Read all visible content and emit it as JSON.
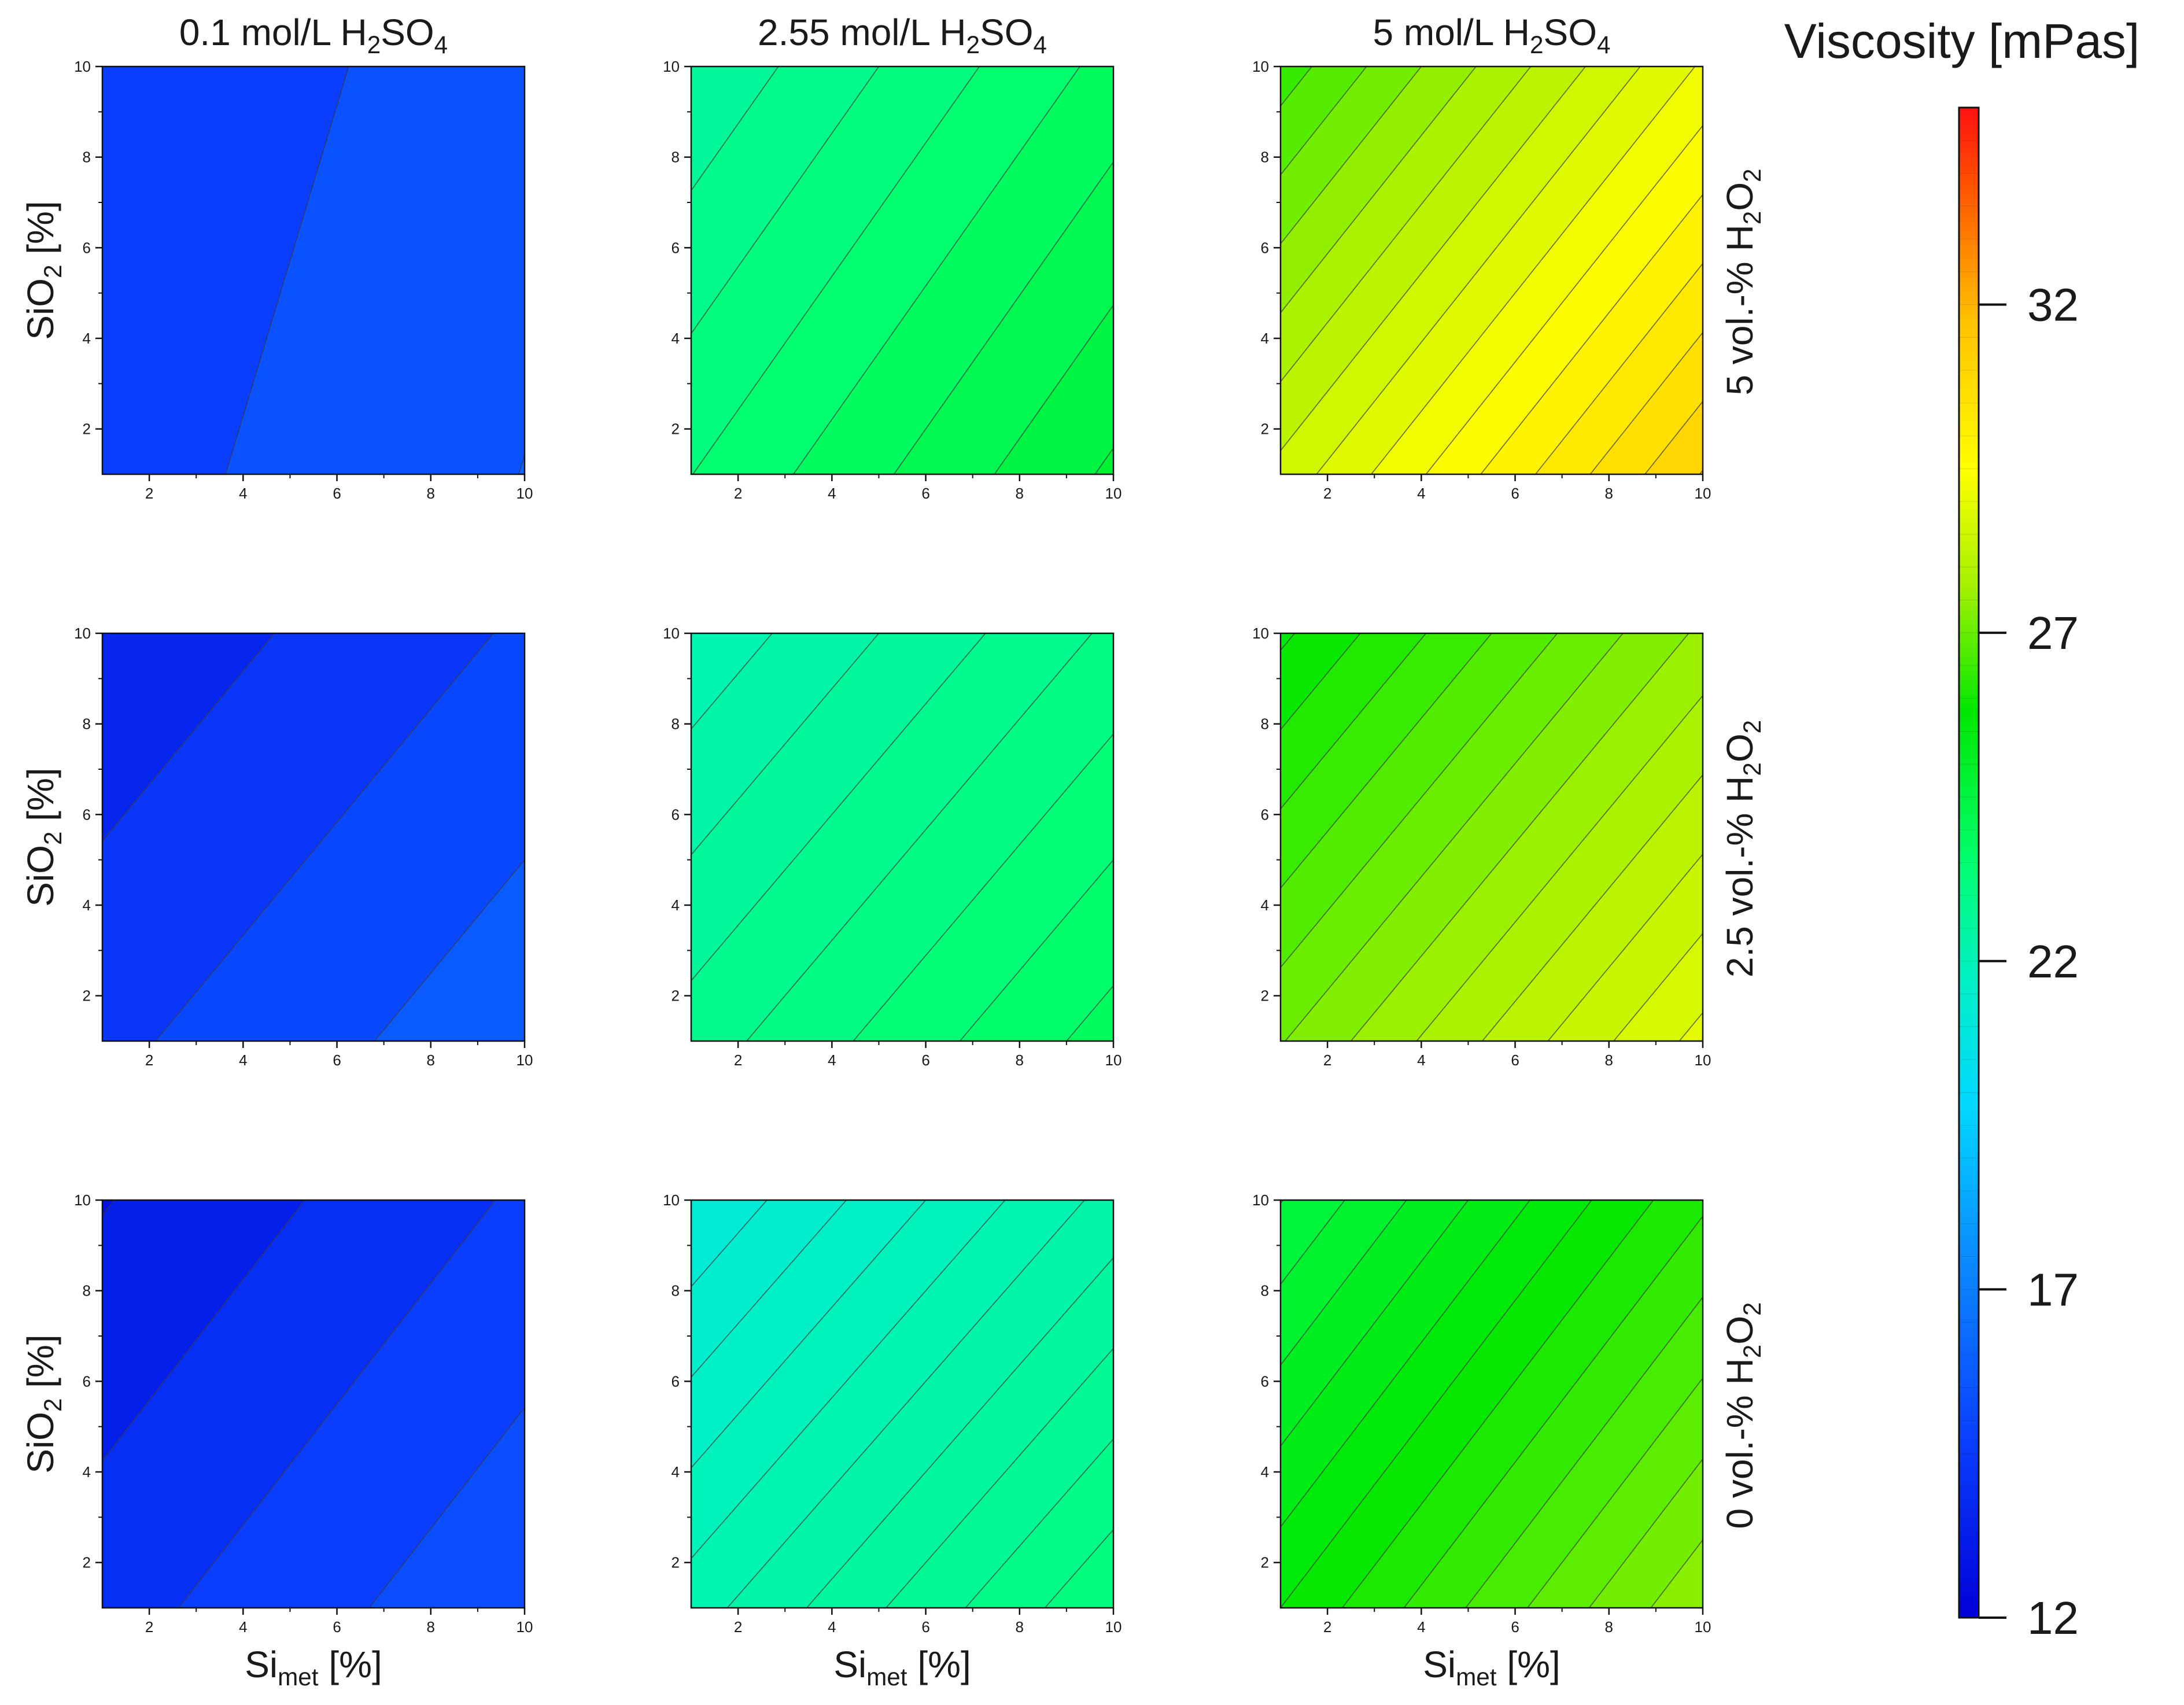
{
  "figure": {
    "colorbar": {
      "title": "Viscosity [mPas]",
      "min": 12,
      "max": 35,
      "tick_labels": [
        "32",
        "27",
        "22",
        "17",
        "12"
      ],
      "tick_values": [
        32,
        27,
        22,
        17,
        12
      ]
    },
    "columns": [
      {
        "label_parts": [
          "0.1 mol/L H",
          "2",
          "SO",
          "4"
        ]
      },
      {
        "label_parts": [
          "2.55 mol/L H",
          "2",
          "SO",
          "4"
        ]
      },
      {
        "label_parts": [
          "5 mol/L H",
          "2",
          "SO",
          "4"
        ]
      }
    ],
    "rows": [
      {
        "label_parts": [
          "5 vol.-% H",
          "2",
          "O",
          "2"
        ]
      },
      {
        "label_parts": [
          "2.5 vol.-% H",
          "2",
          "O",
          "2"
        ]
      },
      {
        "label_parts": [
          "0 vol.-% H",
          "2",
          "O",
          "2"
        ]
      }
    ],
    "ylabel_parts": [
      "SiO",
      "2",
      " [%]"
    ],
    "xlabel_parts": [
      "Si",
      "met",
      " [%]"
    ]
  },
  "chart_data": [
    {
      "type": "heatmap",
      "subtype": "contour",
      "row": 0,
      "col": 0,
      "x_tick_labels": [
        "2",
        "4",
        "6",
        "8",
        "10"
      ],
      "y_tick_labels": [
        "2",
        "4",
        "6",
        "8",
        "10"
      ],
      "xlim": [
        1,
        10
      ],
      "ylim": [
        1,
        10
      ],
      "model": {
        "z0": 14.6,
        "gx": 0.12,
        "gy": -0.035
      },
      "contour_step": 0.75,
      "x_tick_values": [
        2,
        4,
        6,
        8,
        10
      ],
      "y_tick_values": [
        2,
        4,
        6,
        8,
        10
      ]
    },
    {
      "type": "heatmap",
      "subtype": "contour",
      "row": 0,
      "col": 1,
      "x_tick_labels": [
        "2",
        "4",
        "6",
        "8",
        "10"
      ],
      "y_tick_labels": [
        "2",
        "4",
        "6",
        "8",
        "10"
      ],
      "xlim": [
        1,
        10
      ],
      "ylim": [
        1,
        10
      ],
      "model": {
        "z0": 23.35,
        "gx": 0.14,
        "gy": -0.095
      },
      "contour_step": 0.3,
      "x_tick_values": [
        2,
        4,
        6,
        8,
        10
      ],
      "y_tick_values": [
        2,
        4,
        6,
        8,
        10
      ]
    },
    {
      "type": "heatmap",
      "subtype": "contour",
      "row": 0,
      "col": 2,
      "x_tick_labels": [
        "2",
        "4",
        "6",
        "8",
        "10"
      ],
      "y_tick_labels": [
        "2",
        "4",
        "6",
        "8",
        "10"
      ],
      "xlim": [
        1,
        10
      ],
      "ylim": [
        1,
        10
      ],
      "model": {
        "z0": 28.4,
        "gx": 0.3,
        "gy": -0.23
      },
      "contour_step": 0.35,
      "x_tick_values": [
        2,
        4,
        6,
        8,
        10
      ],
      "y_tick_values": [
        2,
        4,
        6,
        8,
        10
      ]
    },
    {
      "type": "heatmap",
      "subtype": "contour",
      "row": 1,
      "col": 0,
      "x_tick_labels": [
        "2",
        "4",
        "6",
        "8",
        "10"
      ],
      "y_tick_labels": [
        "2",
        "4",
        "6",
        "8",
        "10"
      ],
      "xlim": [
        1,
        10
      ],
      "ylim": [
        1,
        10
      ],
      "model": {
        "z0": 14.5,
        "gx": 0.15,
        "gy": -0.12
      },
      "contour_step": 0.7,
      "x_tick_values": [
        2,
        4,
        6,
        8,
        10
      ],
      "y_tick_values": [
        2,
        4,
        6,
        8,
        10
      ]
    },
    {
      "type": "heatmap",
      "subtype": "contour",
      "row": 1,
      "col": 1,
      "x_tick_labels": [
        "2",
        "4",
        "6",
        "8",
        "10"
      ],
      "y_tick_labels": [
        "2",
        "4",
        "6",
        "8",
        "10"
      ],
      "xlim": [
        1,
        10
      ],
      "ylim": [
        1,
        10
      ],
      "model": {
        "z0": 22.85,
        "gx": 0.11,
        "gy": -0.09
      },
      "contour_step": 0.25,
      "x_tick_values": [
        2,
        4,
        6,
        8,
        10
      ],
      "y_tick_values": [
        2,
        4,
        6,
        8,
        10
      ]
    },
    {
      "type": "heatmap",
      "subtype": "contour",
      "row": 1,
      "col": 2,
      "x_tick_labels": [
        "2",
        "4",
        "6",
        "8",
        "10"
      ],
      "y_tick_labels": [
        "2",
        "4",
        "6",
        "8",
        "10"
      ],
      "xlim": [
        1,
        10
      ],
      "ylim": [
        1,
        10
      ],
      "model": {
        "z0": 27.1,
        "gx": 0.2,
        "gy": -0.16
      },
      "contour_step": 0.28,
      "x_tick_values": [
        2,
        4,
        6,
        8,
        10
      ],
      "y_tick_values": [
        2,
        4,
        6,
        8,
        10
      ]
    },
    {
      "type": "heatmap",
      "subtype": "contour",
      "row": 2,
      "col": 0,
      "x_tick_labels": [
        "2",
        "4",
        "6",
        "8",
        "10"
      ],
      "y_tick_labels": [
        "2",
        "4",
        "6",
        "8",
        "10"
      ],
      "xlim": [
        1,
        10
      ],
      "ylim": [
        1,
        10
      ],
      "model": {
        "z0": 14.0,
        "gx": 0.16,
        "gy": -0.12
      },
      "contour_step": 0.65,
      "x_tick_values": [
        2,
        4,
        6,
        8,
        10
      ],
      "y_tick_values": [
        2,
        4,
        6,
        8,
        10
      ]
    },
    {
      "type": "heatmap",
      "subtype": "contour",
      "row": 2,
      "col": 1,
      "x_tick_labels": [
        "2",
        "4",
        "6",
        "8",
        "10"
      ],
      "y_tick_labels": [
        "2",
        "4",
        "6",
        "8",
        "10"
      ],
      "xlim": [
        1,
        10
      ],
      "ylim": [
        1,
        10
      ],
      "model": {
        "z0": 22.1,
        "gx": 0.13,
        "gy": -0.11
      },
      "contour_step": 0.22,
      "x_tick_values": [
        2,
        4,
        6,
        8,
        10
      ],
      "y_tick_values": [
        2,
        4,
        6,
        8,
        10
      ]
    },
    {
      "type": "heatmap",
      "subtype": "contour",
      "row": 2,
      "col": 2,
      "x_tick_labels": [
        "2",
        "4",
        "6",
        "8",
        "10"
      ],
      "y_tick_labels": [
        "2",
        "4",
        "6",
        "8",
        "10"
      ],
      "xlim": [
        1,
        10
      ],
      "ylim": [
        1,
        10
      ],
      "model": {
        "z0": 25.7,
        "gx": 0.19,
        "gy": -0.14
      },
      "contour_step": 0.25,
      "x_tick_values": [
        2,
        4,
        6,
        8,
        10
      ],
      "y_tick_values": [
        2,
        4,
        6,
        8,
        10
      ]
    }
  ]
}
